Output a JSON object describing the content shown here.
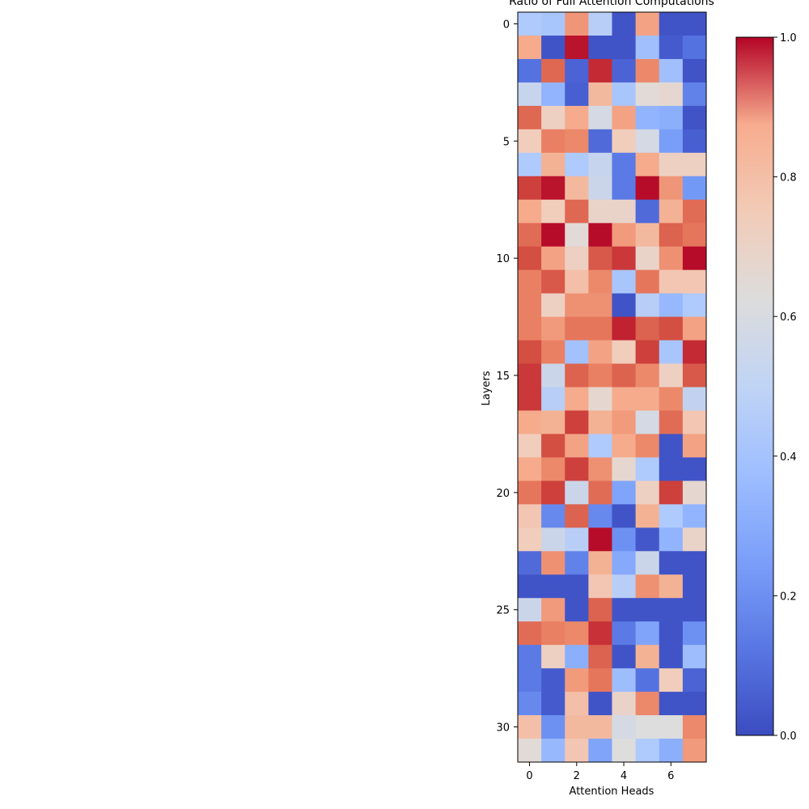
{
  "chart_data": {
    "type": "heatmap",
    "title": "Ratio of Full Attention Computations",
    "xlabel": "Attention Heads",
    "ylabel": "Layers",
    "x_ticks": [
      0,
      2,
      4,
      6
    ],
    "y_ticks": [
      0,
      5,
      10,
      15,
      20,
      25,
      30
    ],
    "n_heads": 8,
    "n_layers": 32,
    "colormap": "coolwarm",
    "colorbar_range": [
      0.0,
      1.0
    ],
    "colorbar_ticks": [
      "0.0",
      "0.2",
      "0.4",
      "0.6",
      "0.8",
      "1.0"
    ],
    "values": [
      [
        0.4,
        0.38,
        0.75,
        0.42,
        0.02,
        0.72,
        0.02,
        0.02
      ],
      [
        0.7,
        0.02,
        0.98,
        0.02,
        0.02,
        0.35,
        0.04,
        0.1
      ],
      [
        0.1,
        0.85,
        0.06,
        0.95,
        0.06,
        0.78,
        0.35,
        0.02
      ],
      [
        0.45,
        0.3,
        0.05,
        0.66,
        0.38,
        0.52,
        0.54,
        0.14
      ],
      [
        0.85,
        0.58,
        0.7,
        0.48,
        0.72,
        0.3,
        0.28,
        0.02
      ],
      [
        0.6,
        0.8,
        0.78,
        0.08,
        0.6,
        0.48,
        0.22,
        0.05
      ],
      [
        0.4,
        0.68,
        0.4,
        0.45,
        0.12,
        0.7,
        0.58,
        0.58
      ],
      [
        0.92,
        0.98,
        0.66,
        0.46,
        0.12,
        0.99,
        0.75,
        0.2
      ],
      [
        0.7,
        0.6,
        0.85,
        0.56,
        0.56,
        0.08,
        0.68,
        0.84
      ],
      [
        0.84,
        0.99,
        0.52,
        0.99,
        0.74,
        0.66,
        0.86,
        0.82
      ],
      [
        0.9,
        0.72,
        0.58,
        0.88,
        0.93,
        0.56,
        0.76,
        0.99
      ],
      [
        0.8,
        0.88,
        0.64,
        0.78,
        0.38,
        0.82,
        0.62,
        0.62
      ],
      [
        0.8,
        0.58,
        0.76,
        0.76,
        0.02,
        0.42,
        0.32,
        0.4
      ],
      [
        0.8,
        0.74,
        0.82,
        0.82,
        0.96,
        0.86,
        0.9,
        0.72
      ],
      [
        0.9,
        0.8,
        0.36,
        0.72,
        0.6,
        0.92,
        0.38,
        0.95
      ],
      [
        0.93,
        0.46,
        0.86,
        0.8,
        0.86,
        0.78,
        0.58,
        0.88
      ],
      [
        0.93,
        0.42,
        0.7,
        0.54,
        0.7,
        0.7,
        0.78,
        0.44
      ],
      [
        0.7,
        0.68,
        0.92,
        0.68,
        0.74,
        0.48,
        0.84,
        0.62
      ],
      [
        0.6,
        0.9,
        0.72,
        0.4,
        0.7,
        0.78,
        0.02,
        0.72
      ],
      [
        0.7,
        0.78,
        0.92,
        0.76,
        0.54,
        0.4,
        0.02,
        0.02
      ],
      [
        0.82,
        0.92,
        0.46,
        0.84,
        0.24,
        0.58,
        0.92,
        0.54
      ],
      [
        0.62,
        0.16,
        0.86,
        0.16,
        0.02,
        0.68,
        0.4,
        0.3
      ],
      [
        0.6,
        0.46,
        0.42,
        0.99,
        0.18,
        0.03,
        0.3,
        0.56
      ],
      [
        0.08,
        0.76,
        0.14,
        0.68,
        0.26,
        0.46,
        0.02,
        0.02
      ],
      [
        0.02,
        0.02,
        0.02,
        0.62,
        0.42,
        0.76,
        0.68,
        0.02
      ],
      [
        0.46,
        0.74,
        0.02,
        0.86,
        0.02,
        0.02,
        0.02,
        0.02
      ],
      [
        0.84,
        0.8,
        0.78,
        0.94,
        0.12,
        0.24,
        0.02,
        0.18
      ],
      [
        0.12,
        0.58,
        0.28,
        0.86,
        0.02,
        0.68,
        0.02,
        0.34
      ],
      [
        0.12,
        0.04,
        0.74,
        0.82,
        0.34,
        0.1,
        0.6,
        0.06
      ],
      [
        0.16,
        0.04,
        0.64,
        0.02,
        0.56,
        0.78,
        0.02,
        0.02
      ],
      [
        0.64,
        0.18,
        0.66,
        0.66,
        0.48,
        0.5,
        0.5,
        0.78
      ],
      [
        0.52,
        0.32,
        0.62,
        0.24,
        0.5,
        0.4,
        0.28,
        0.74
      ]
    ]
  }
}
